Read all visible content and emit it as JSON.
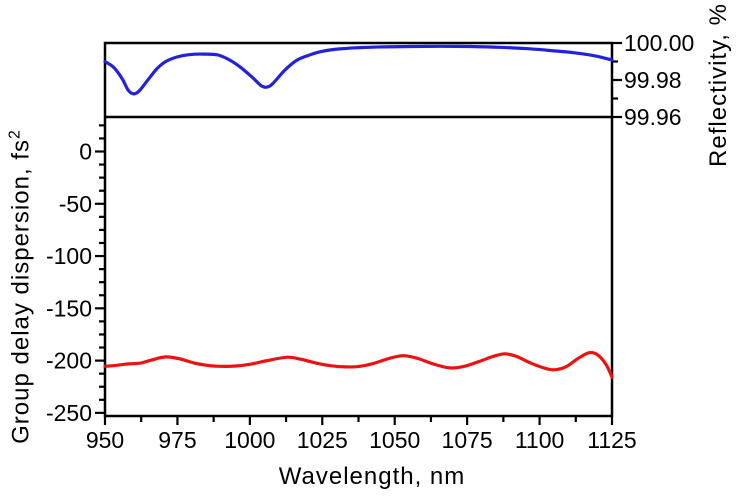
{
  "chart_data": {
    "type": "line",
    "title": "",
    "x_axis": {
      "label": "Wavelength, nm",
      "min": 950,
      "max": 1125,
      "major_ticks": [
        950,
        975,
        1000,
        1025,
        1050,
        1075,
        1100,
        1125
      ],
      "major_tick_labels": [
        "950",
        "975",
        "1000",
        "1025",
        "1050",
        "1075",
        "1100",
        "1125"
      ],
      "minor_tick_step": 12.5,
      "grid": false
    },
    "left_axis": {
      "label_base": "Group delay dispersion, fs",
      "label_sup": "2",
      "range_top": 33,
      "range_bottom": -253,
      "major_ticks": [
        0,
        -50,
        -100,
        -150,
        -200,
        -250
      ],
      "major_tick_labels": [
        "0",
        "-50",
        "-100",
        "-150",
        "-200",
        "-250"
      ],
      "minor_tick_step": 12.5,
      "grid": false
    },
    "right_axis": {
      "label": "Reflectivity, %",
      "min": 99.96,
      "max": 100.0,
      "major_ticks": [
        100.0,
        99.98,
        99.96
      ],
      "major_tick_labels": [
        "100.00",
        "99.98",
        "99.96"
      ],
      "minor_ticks": [
        99.99,
        99.97
      ],
      "grid": false
    },
    "panel_divider_value": 99.96,
    "colors": {
      "axis": "#000000",
      "background": "#ffffff",
      "reflectivity_line": "#2222dd",
      "gdd_line": "#ee1111"
    },
    "series": [
      {
        "name": "Reflectivity",
        "axis": "right",
        "color": "#2222dd",
        "points": [
          [
            950,
            99.99
          ],
          [
            953,
            99.9868
          ],
          [
            956,
            99.9805
          ],
          [
            958,
            99.9745
          ],
          [
            960,
            99.9725
          ],
          [
            962,
            99.9745
          ],
          [
            965,
            99.9805
          ],
          [
            968,
            99.9862
          ],
          [
            971,
            99.99
          ],
          [
            975,
            99.9925
          ],
          [
            979,
            99.9937
          ],
          [
            984,
            99.994
          ],
          [
            989,
            99.9935
          ],
          [
            993,
            99.9908
          ],
          [
            997,
            99.9866
          ],
          [
            1001,
            99.9812
          ],
          [
            1004,
            99.9768
          ],
          [
            1006,
            99.9762
          ],
          [
            1008,
            99.9782
          ],
          [
            1012,
            99.9852
          ],
          [
            1016,
            99.9905
          ],
          [
            1020,
            99.9932
          ],
          [
            1025,
            99.9955
          ],
          [
            1031,
            99.9968
          ],
          [
            1038,
            99.9975
          ],
          [
            1046,
            99.9979
          ],
          [
            1056,
            99.9981
          ],
          [
            1066,
            99.9982
          ],
          [
            1076,
            99.9981
          ],
          [
            1086,
            99.9977
          ],
          [
            1096,
            99.9969
          ],
          [
            1104,
            99.9959
          ],
          [
            1112,
            99.9947
          ],
          [
            1119,
            99.9931
          ],
          [
            1125,
            99.9908
          ]
        ]
      },
      {
        "name": "Group delay dispersion",
        "axis": "left",
        "color": "#ee1111",
        "points": [
          [
            950,
            -205.5
          ],
          [
            954,
            -204.5
          ],
          [
            958,
            -203.2
          ],
          [
            962,
            -202.5
          ],
          [
            966,
            -199.5
          ],
          [
            971,
            -196.5
          ],
          [
            976,
            -198.5
          ],
          [
            981,
            -202.5
          ],
          [
            986,
            -204.8
          ],
          [
            990,
            -205.5
          ],
          [
            995,
            -205.2
          ],
          [
            1000,
            -203.5
          ],
          [
            1006,
            -200.0
          ],
          [
            1013,
            -196.8
          ],
          [
            1018,
            -199.0
          ],
          [
            1023,
            -202.5
          ],
          [
            1028,
            -205.0
          ],
          [
            1033,
            -206.0
          ],
          [
            1038,
            -205.5
          ],
          [
            1043,
            -202.5
          ],
          [
            1048,
            -198.0
          ],
          [
            1053,
            -195.3
          ],
          [
            1058,
            -198.0
          ],
          [
            1063,
            -203.0
          ],
          [
            1069,
            -207.0
          ],
          [
            1074,
            -205.5
          ],
          [
            1079,
            -201.0
          ],
          [
            1084,
            -196.0
          ],
          [
            1088,
            -193.5
          ],
          [
            1092,
            -196.0
          ],
          [
            1097,
            -202.5
          ],
          [
            1102,
            -207.5
          ],
          [
            1105,
            -208.8
          ],
          [
            1109,
            -206.0
          ],
          [
            1113,
            -198.5
          ],
          [
            1117,
            -192.5
          ],
          [
            1120,
            -194.5
          ],
          [
            1123,
            -204.0
          ],
          [
            1125,
            -216.0
          ]
        ]
      }
    ]
  }
}
